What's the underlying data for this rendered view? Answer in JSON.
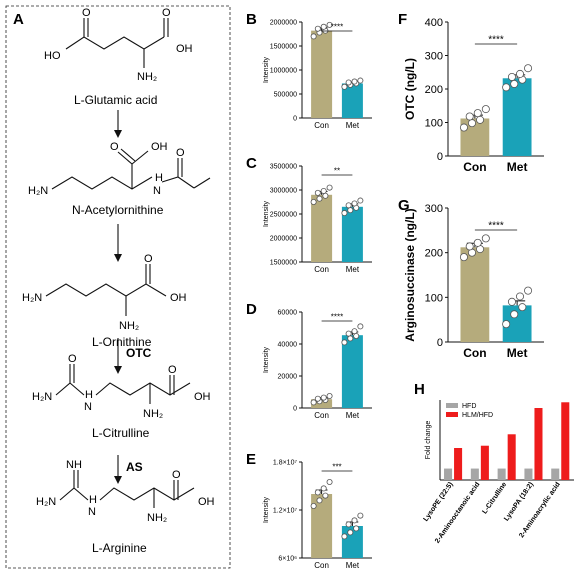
{
  "pathway": {
    "letter": "A",
    "compounds": [
      "L-Glutamic acid",
      "N-Acetylornithine",
      "L-Ornithine",
      "L-Citrulline",
      "L-Arginine"
    ],
    "enzymes": [
      "OTC",
      "AS"
    ],
    "atoms": {
      "ho": "HO",
      "oh": "OH",
      "o": "O",
      "nh2": "NH₂",
      "h2n": "H₂N",
      "h": "H",
      "n": "N",
      "nh": "NH"
    }
  },
  "colors": {
    "con": "#b5ab7c",
    "met": "#1aa2b8",
    "hfd": "#a6a6a6",
    "hlm": "#ee1c1c"
  },
  "chart_data": [
    {
      "id": "B",
      "type": "bar",
      "title": "",
      "xlabel": "",
      "ylabel": "Intensity",
      "categories": [
        "Con",
        "Met"
      ],
      "values": [
        1820000,
        720000
      ],
      "errors": [
        60000,
        30000
      ],
      "points": [
        [
          1700000,
          1780000,
          1820000,
          1860000,
          1900000,
          1940000
        ],
        [
          650000,
          690000,
          720000,
          740000,
          760000,
          780000
        ]
      ],
      "ylim": [
        0,
        2000000
      ],
      "ticks": [
        0,
        500000,
        1000000,
        1500000,
        2000000
      ],
      "tick_labels": [
        "0",
        "500000",
        "1000000",
        "1500000",
        "2000000"
      ],
      "significance": "****"
    },
    {
      "id": "C",
      "type": "bar",
      "title": "",
      "xlabel": "",
      "ylabel": "Intensity",
      "categories": [
        "Con",
        "Met"
      ],
      "values": [
        2900000,
        2650000
      ],
      "errors": [
        70000,
        60000
      ],
      "points": [
        [
          2750000,
          2820000,
          2880000,
          2940000,
          2980000,
          3050000
        ],
        [
          2520000,
          2580000,
          2630000,
          2680000,
          2720000,
          2780000
        ]
      ],
      "ylim": [
        1500000,
        3500000
      ],
      "ticks": [
        1500000,
        2000000,
        2500000,
        3000000,
        3500000
      ],
      "tick_labels": [
        "1500000",
        "2000000",
        "2500000",
        "3000000",
        "3500000"
      ],
      "significance": "**"
    },
    {
      "id": "D",
      "type": "bar",
      "title": "",
      "xlabel": "",
      "ylabel": "Intensity",
      "categories": [
        "Con",
        "Met"
      ],
      "values": [
        5500,
        45500
      ],
      "errors": [
        1000,
        2000
      ],
      "points": [
        [
          3500,
          4200,
          5000,
          5800,
          6500,
          7500
        ],
        [
          41000,
          43500,
          45000,
          46500,
          48000,
          51000
        ]
      ],
      "ylim": [
        0,
        60000
      ],
      "ticks": [
        0,
        20000,
        40000,
        60000
      ],
      "tick_labels": [
        "0",
        "20000",
        "40000",
        "60000"
      ],
      "significance": "****"
    },
    {
      "id": "E",
      "type": "bar",
      "title": "",
      "xlabel": "",
      "ylabel": "Intensity",
      "categories": [
        "Con",
        "Met"
      ],
      "values": [
        14000000,
        10000000
      ],
      "errors": [
        500000,
        500000
      ],
      "points": [
        [
          12500000,
          13200000,
          13800000,
          14200000,
          14700000,
          15500000
        ],
        [
          8700000,
          9200000,
          9700000,
          10200000,
          10700000,
          11300000
        ]
      ],
      "ylim": [
        6000000,
        18000000
      ],
      "ticks": [
        6000000,
        12000000,
        18000000
      ],
      "tick_labels": [
        "6×10⁶",
        "1.2×10⁷",
        "1.8×10⁷"
      ],
      "significance": "***"
    },
    {
      "id": "F",
      "type": "bar",
      "title": "",
      "xlabel": "",
      "ylabel": "OTC (ng/L)",
      "categories": [
        "Con",
        "Met"
      ],
      "values": [
        112,
        232
      ],
      "errors": [
        10,
        10
      ],
      "points": [
        [
          85,
          98,
          108,
          118,
          128,
          140
        ],
        [
          205,
          215,
          228,
          236,
          245,
          262
        ]
      ],
      "ylim": [
        0,
        400
      ],
      "ticks": [
        0,
        100,
        200,
        300,
        400
      ],
      "tick_labels": [
        "0",
        "100",
        "200",
        "300",
        "400"
      ],
      "significance": "****"
    },
    {
      "id": "G",
      "type": "bar",
      "title": "",
      "xlabel": "",
      "ylabel": "Arginosuccinase (ng/L)",
      "categories": [
        "Con",
        "Met"
      ],
      "values": [
        212,
        82
      ],
      "errors": [
        9,
        10
      ],
      "points": [
        [
          190,
          200,
          208,
          214,
          222,
          232
        ],
        [
          40,
          62,
          78,
          90,
          102,
          115
        ]
      ],
      "ylim": [
        0,
        300
      ],
      "ticks": [
        0,
        100,
        200,
        300
      ],
      "tick_labels": [
        "0",
        "100",
        "200",
        "300"
      ],
      "significance": "****"
    },
    {
      "id": "H",
      "type": "bar",
      "title": "",
      "xlabel": "",
      "ylabel": "Fold change",
      "categories": [
        "LysoPE (22:5)",
        "2-Aminooctanoic acid",
        "L-Citrulline",
        "LysoPA (18:2)",
        "2-Aminoacrylic acid"
      ],
      "series": [
        {
          "name": "HFD",
          "values": [
            1,
            1,
            1,
            1,
            1
          ]
        },
        {
          "name": "HLM/HFD",
          "values": [
            2.8,
            3.0,
            4.0,
            6.3,
            6.8
          ]
        }
      ],
      "ylim": [
        0,
        7
      ],
      "legend": "top-left"
    }
  ]
}
